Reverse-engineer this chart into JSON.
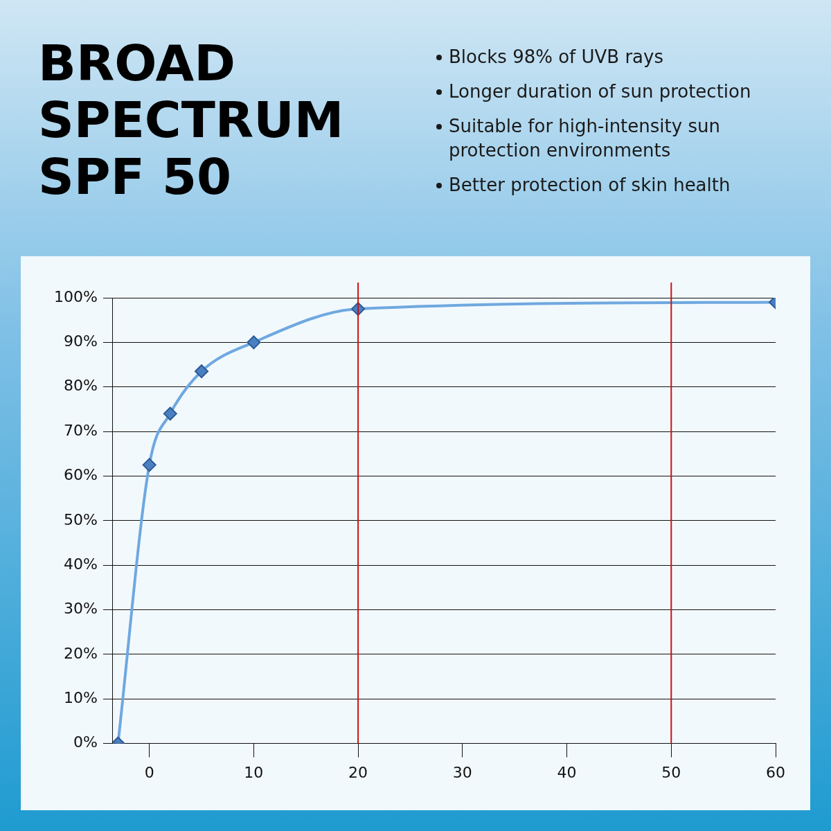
{
  "chart_data": {
    "type": "line",
    "title": "BROAD SPECTRUM SPF 50",
    "annotations": [
      "Blocks 98% of UVB rays",
      "Longer duration of sun protection",
      "Suitable for high-intensity sun protection environments",
      "Better protection of skin health"
    ],
    "x": [
      -3,
      0,
      2,
      5,
      10,
      20,
      60
    ],
    "series": [
      {
        "color": "#6fa8e0",
        "values": [
          0,
          62.5,
          74,
          83.5,
          90,
          97.5,
          99
        ]
      }
    ],
    "xlim": [
      -3.5,
      60
    ],
    "xticks": [
      0,
      10,
      20,
      30,
      40,
      50,
      60
    ],
    "ylim": [
      0,
      100
    ],
    "yticks": [
      {
        "value": 0,
        "label": "0%"
      },
      {
        "value": 10,
        "label": "10%"
      },
      {
        "value": 20,
        "label": "20%"
      },
      {
        "value": 30,
        "label": "30%"
      },
      {
        "value": 40,
        "label": "40%"
      },
      {
        "value": 50,
        "label": "50%"
      },
      {
        "value": 60,
        "label": "60%"
      },
      {
        "value": 70,
        "label": "70%"
      },
      {
        "value": 80,
        "label": "80%"
      },
      {
        "value": 90,
        "label": "90%"
      },
      {
        "value": 100,
        "label": "100%"
      }
    ],
    "ref_lines": [
      {
        "axis": "x",
        "value": 20,
        "color": "#cc1111"
      },
      {
        "axis": "x",
        "value": 50,
        "color": "#cc1111"
      }
    ],
    "grid": "y",
    "marker": "diamond",
    "legend": false
  }
}
